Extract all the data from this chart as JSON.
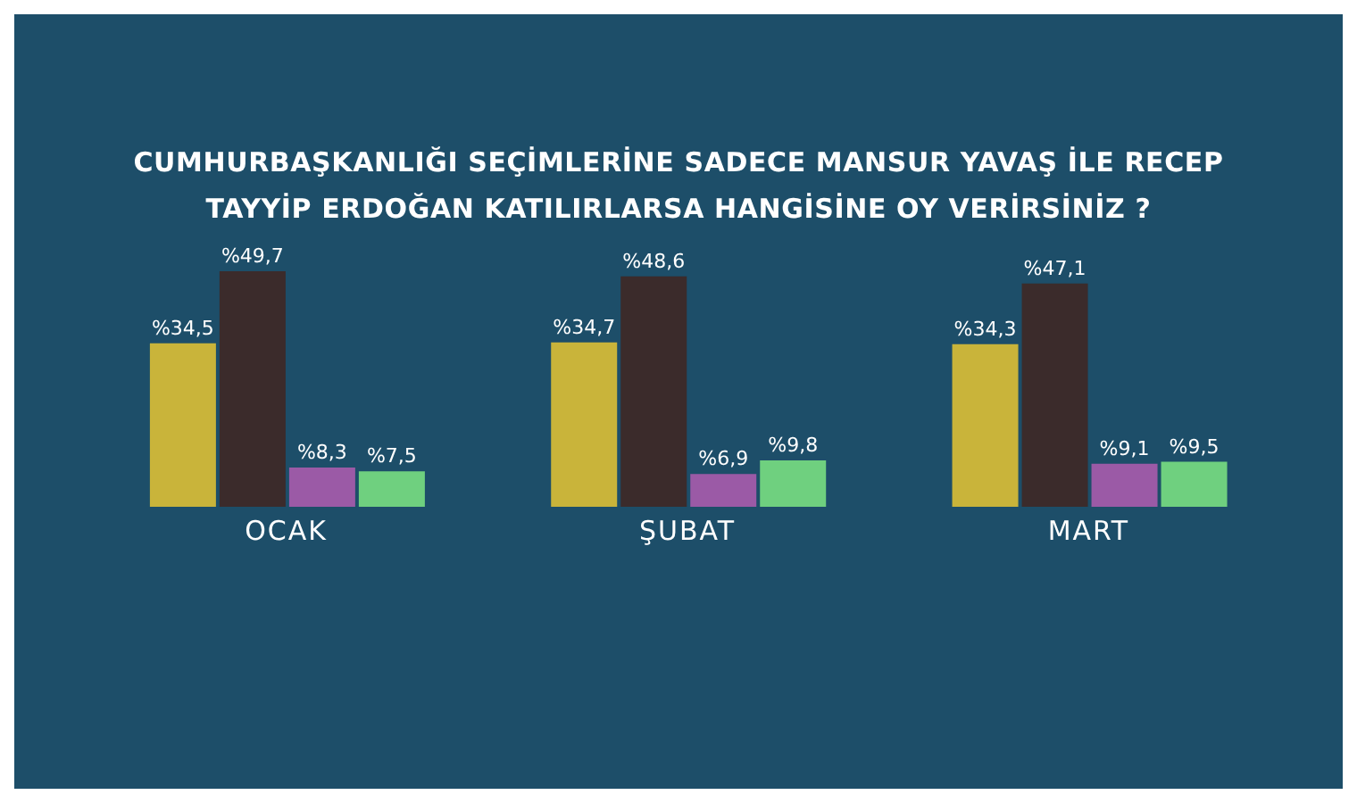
{
  "chart_data": {
    "type": "bar",
    "title": "CUMHURBAŞKANLIĞI SEÇİMLERİNE SADECE MANSUR YAVAŞ İLE RECEP TAYYİP ERDOĞAN KATILIRLARSA HANGİSİNE OY VERİRSİNİZ ?",
    "categories": [
      "OCAK",
      "ŞUBAT",
      "MART"
    ],
    "series": [
      {
        "color": "#c9b43a",
        "values": [
          34.5,
          34.7,
          34.3
        ],
        "value_labels": [
          "%34,5",
          "%34,7",
          "%34,3"
        ]
      },
      {
        "color": "#3b2b2b",
        "values": [
          49.7,
          48.6,
          47.1
        ],
        "value_labels": [
          "%49,7",
          "%48,6",
          "%47,1"
        ]
      },
      {
        "color": "#9b5aa6",
        "values": [
          8.3,
          6.9,
          9.1
        ],
        "value_labels": [
          "%8,3",
          "%6,9",
          "%9,1"
        ]
      },
      {
        "color": "#6fd07f",
        "values": [
          7.5,
          9.8,
          9.5
        ],
        "value_labels": [
          "%7,5",
          "%9,8",
          "%9,5"
        ]
      }
    ],
    "grid": false,
    "legend": false,
    "tick_labels": "x"
  }
}
